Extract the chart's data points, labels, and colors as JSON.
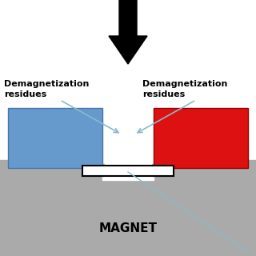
{
  "bg_color": "#ffffff",
  "gray_color": "#aaaaaa",
  "blue_color": "#6699cc",
  "red_color": "#dd1111",
  "light_blue": "#88bbcc",
  "title": "MAGNET",
  "left_label": "Demagnetization\nresidues",
  "right_label": "Demagnetization\nresidues",
  "figsize": [
    3.2,
    3.2
  ],
  "dpi": 100
}
